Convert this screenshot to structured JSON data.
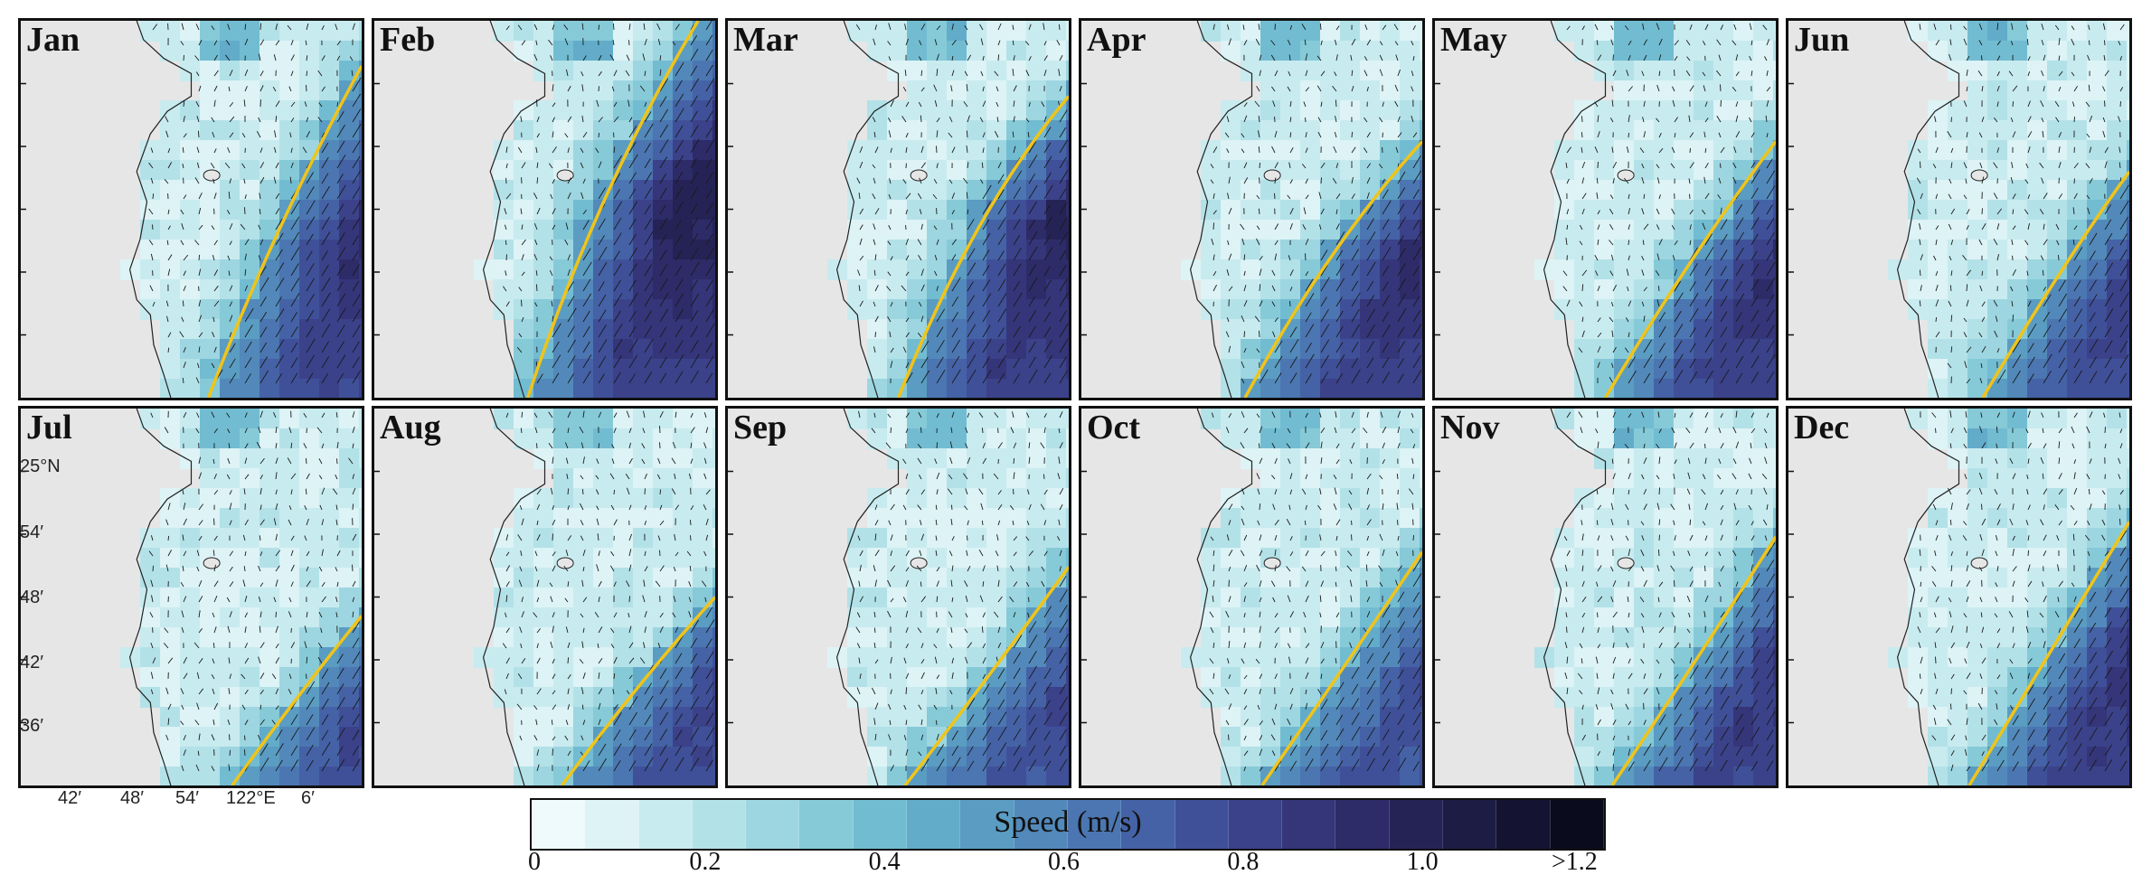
{
  "figure": {
    "panels": [
      {
        "label": "Jan",
        "front": [
          [
            0.55,
            1.0
          ],
          [
            0.74,
            0.55
          ],
          [
            1.0,
            0.12
          ]
        ],
        "core": 0.55,
        "intensity": 0.85
      },
      {
        "label": "Feb",
        "front": [
          [
            0.45,
            1.0
          ],
          [
            0.65,
            0.45
          ],
          [
            0.95,
            0.0
          ]
        ],
        "core": 0.5,
        "intensity": 1.0
      },
      {
        "label": "Mar",
        "front": [
          [
            0.5,
            1.0
          ],
          [
            0.72,
            0.5
          ],
          [
            1.0,
            0.2
          ]
        ],
        "core": 0.55,
        "intensity": 0.95
      },
      {
        "label": "Apr",
        "front": [
          [
            0.48,
            1.0
          ],
          [
            0.72,
            0.6
          ],
          [
            1.0,
            0.32
          ]
        ],
        "core": 0.6,
        "intensity": 0.85
      },
      {
        "label": "May",
        "front": [
          [
            0.5,
            1.0
          ],
          [
            0.75,
            0.62
          ],
          [
            1.0,
            0.32
          ]
        ],
        "core": 0.62,
        "intensity": 0.85
      },
      {
        "label": "Jun",
        "front": [
          [
            0.57,
            1.0
          ],
          [
            0.8,
            0.65
          ],
          [
            1.0,
            0.4
          ]
        ],
        "core": 0.66,
        "intensity": 0.72
      },
      {
        "label": "Jul",
        "front": [
          [
            0.62,
            1.0
          ],
          [
            0.82,
            0.75
          ],
          [
            1.0,
            0.55
          ]
        ],
        "core": 0.72,
        "intensity": 0.65
      },
      {
        "label": "Aug",
        "front": [
          [
            0.55,
            1.0
          ],
          [
            0.78,
            0.72
          ],
          [
            1.0,
            0.5
          ]
        ],
        "core": 0.7,
        "intensity": 0.68
      },
      {
        "label": "Sep",
        "front": [
          [
            0.52,
            1.0
          ],
          [
            0.76,
            0.72
          ],
          [
            1.0,
            0.42
          ]
        ],
        "core": 0.72,
        "intensity": 0.62
      },
      {
        "label": "Oct",
        "front": [
          [
            0.53,
            1.0
          ],
          [
            0.76,
            0.7
          ],
          [
            1.0,
            0.38
          ]
        ],
        "core": 0.72,
        "intensity": 0.58
      },
      {
        "label": "Nov",
        "front": [
          [
            0.52,
            1.0
          ],
          [
            0.76,
            0.68
          ],
          [
            1.0,
            0.34
          ]
        ],
        "core": 0.65,
        "intensity": 0.8
      },
      {
        "label": "Dec",
        "front": [
          [
            0.53,
            1.0
          ],
          [
            0.76,
            0.66
          ],
          [
            1.0,
            0.3
          ]
        ],
        "core": 0.62,
        "intensity": 0.85
      }
    ],
    "y_axis_labels": [
      "25°N",
      "54′",
      "48′",
      "42′",
      "36′"
    ],
    "x_axis_labels": [
      "42′",
      "48′",
      "54′",
      "122°E",
      "6′"
    ],
    "colorbar": {
      "title": "Speed (m/s)",
      "ticks": [
        "0",
        "0.2",
        "0.4",
        "0.6",
        "0.8",
        "1.0",
        ">1.2"
      ],
      "colors": [
        "#eefafc",
        "#ddf3f6",
        "#c8ebef",
        "#b3e1e8",
        "#9dd6e0",
        "#86cad8",
        "#72bcd2",
        "#62acca",
        "#5a9cc2",
        "#5289ba",
        "#4b76b1",
        "#4562a6",
        "#3f5099",
        "#3b428a",
        "#35357a",
        "#2d2b68",
        "#252356",
        "#1d1c44",
        "#141432",
        "#0b0b1e"
      ]
    },
    "colors": {
      "land": "#e6e6e6",
      "front": "#f0c419",
      "arrow": "#1a1a1a"
    }
  }
}
